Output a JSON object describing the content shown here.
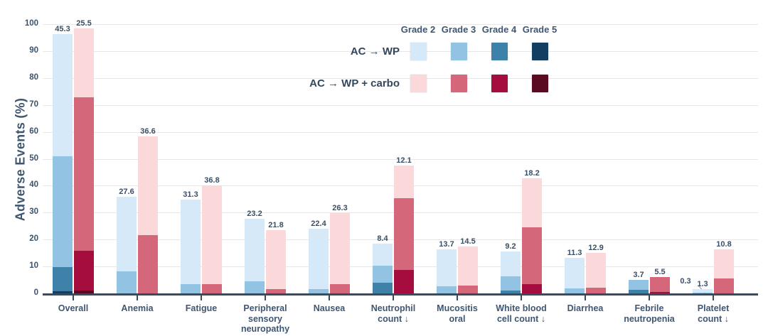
{
  "y_axis": {
    "title": "Adverse Events (%)",
    "ticks": [
      "0",
      "10",
      "20",
      "30",
      "40",
      "50",
      "60",
      "70",
      "80",
      "90",
      "100"
    ]
  },
  "legend": {
    "position": "top-right-inside-plot",
    "grade_headers": [
      "Grade 2",
      "Grade 3",
      "Grade 4",
      "Grade 5"
    ],
    "arms": [
      {
        "label": "AC → WP",
        "colors": {
          "Grade 2": "#d6e9f8",
          "Grade 3": "#93c3e2",
          "Grade 4": "#3e82a9",
          "Grade 5": "#123f61"
        }
      },
      {
        "label": "AC → WP + carbo",
        "colors": {
          "Grade 2": "#fbd9db",
          "Grade 3": "#d5677b",
          "Grade 4": "#a50d3e",
          "Grade 5": "#5a0b22"
        }
      }
    ]
  },
  "style": {
    "gridline_color": "#e7e7e7",
    "axis_color": "#3a4b5e",
    "label_color": "#3a4f66",
    "light_label_color": "#ffffff",
    "callout_line_color": "#8fa6b8"
  },
  "chart_data": {
    "type": "bar",
    "stacked": true,
    "grid": true,
    "ylabel": "Adverse Events (%)",
    "ylim": [
      0,
      100
    ],
    "ytick_step": 10,
    "grade_stack_order_bottom_up": [
      "Grade 5",
      "Grade 4",
      "Grade 3",
      "Grade 2"
    ],
    "series_names": [
      "AC → WP",
      "AC → WP + carbo"
    ],
    "categories": [
      {
        "label": "Overall",
        "lines": [
          "Overall"
        ],
        "arms": [
          {
            "segments": [
              {
                "grade": "Grade 5",
                "value": 0.8,
                "label_light": true
              },
              {
                "grade": "Grade 4",
                "value": 8.9
              },
              {
                "grade": "Grade 3",
                "value": 41.3
              },
              {
                "grade": "Grade 2",
                "value": 45.3
              }
            ]
          },
          {
            "segments": [
              {
                "grade": "Grade 5",
                "value": 1.1,
                "label_light": true
              },
              {
                "grade": "Grade 4",
                "value": 14.7
              },
              {
                "grade": "Grade 3",
                "value": 57.1
              },
              {
                "grade": "Grade 2",
                "value": 25.5
              }
            ]
          }
        ]
      },
      {
        "label": "Anemia",
        "lines": [
          "Anemia"
        ],
        "arms": [
          {
            "segments": [
              {
                "grade": "Grade 3",
                "value": 8.2
              },
              {
                "grade": "Grade 2",
                "value": 27.6
              }
            ]
          },
          {
            "segments": [
              {
                "grade": "Grade 3",
                "value": 21.6
              },
              {
                "grade": "Grade 2",
                "value": 36.6
              }
            ]
          }
        ]
      },
      {
        "label": "Fatigue",
        "lines": [
          "Fatigue"
        ],
        "arms": [
          {
            "segments": [
              {
                "grade": "Grade 3",
                "value": 3.4
              },
              {
                "grade": "Grade 2",
                "value": 31.3
              }
            ]
          },
          {
            "segments": [
              {
                "grade": "Grade 3",
                "value": 3.4
              },
              {
                "grade": "Grade 2",
                "value": 36.8
              }
            ]
          }
        ]
      },
      {
        "label": "Peripheral sensory neuropathy",
        "lines": [
          "Peripheral",
          "sensory",
          "neuropathy"
        ],
        "arms": [
          {
            "segments": [
              {
                "grade": "Grade 3",
                "value": 4.5
              },
              {
                "grade": "Grade 2",
                "value": 23.2
              }
            ]
          },
          {
            "segments": [
              {
                "grade": "Grade 3",
                "value": 1.6
              },
              {
                "grade": "Grade 2",
                "value": 21.8
              }
            ]
          }
        ]
      },
      {
        "label": "Nausea",
        "lines": [
          "Nausea"
        ],
        "arms": [
          {
            "segments": [
              {
                "grade": "Grade 3",
                "value": 1.6
              },
              {
                "grade": "Grade 2",
                "value": 22.4
              }
            ]
          },
          {
            "segments": [
              {
                "grade": "Grade 3",
                "value": 3.4
              },
              {
                "grade": "Grade 2",
                "value": 26.3
              }
            ]
          }
        ]
      },
      {
        "label": "Neutrophil count ↓",
        "lines": [
          "Neutrophil",
          "count ↓"
        ],
        "arms": [
          {
            "segments": [
              {
                "grade": "Grade 4",
                "value": 3.9
              },
              {
                "grade": "Grade 3",
                "value": 6.3
              },
              {
                "grade": "Grade 2",
                "value": 8.4
              }
            ]
          },
          {
            "segments": [
              {
                "grade": "Grade 4",
                "value": 8.7
              },
              {
                "grade": "Grade 3",
                "value": 26.6
              },
              {
                "grade": "Grade 2",
                "value": 12.1
              }
            ]
          }
        ]
      },
      {
        "label": "Mucositis oral",
        "lines": [
          "Mucositis",
          "oral"
        ],
        "arms": [
          {
            "segments": [
              {
                "grade": "Grade 3",
                "value": 2.6
              },
              {
                "grade": "Grade 2",
                "value": 13.7
              }
            ]
          },
          {
            "segments": [
              {
                "grade": "Grade 3",
                "value": 2.9
              },
              {
                "grade": "Grade 2",
                "value": 14.5
              }
            ]
          }
        ]
      },
      {
        "label": "White blood cell count ↓",
        "lines": [
          "White blood",
          "cell count ↓"
        ],
        "arms": [
          {
            "segments": [
              {
                "grade": "Grade 4",
                "value": 1.1
              },
              {
                "grade": "Grade 3",
                "value": 5.3
              },
              {
                "grade": "Grade 2",
                "value": 9.2
              }
            ]
          },
          {
            "segments": [
              {
                "grade": "Grade 4",
                "value": 3.4
              },
              {
                "grade": "Grade 3",
                "value": 21.1
              },
              {
                "grade": "Grade 2",
                "value": 18.2
              }
            ]
          }
        ]
      },
      {
        "label": "Diarrhea",
        "lines": [
          "Diarrhea"
        ],
        "arms": [
          {
            "segments": [
              {
                "grade": "Grade 3",
                "value": 1.8
              },
              {
                "grade": "Grade 2",
                "value": 11.3
              }
            ]
          },
          {
            "segments": [
              {
                "grade": "Grade 3",
                "value": 2.1
              },
              {
                "grade": "Grade 2",
                "value": 12.9
              }
            ]
          }
        ]
      },
      {
        "label": "Febrile neutropenia",
        "lines": [
          "Febrile",
          "neutropenia"
        ],
        "arms": [
          {
            "segments": [
              {
                "grade": "Grade 4",
                "value": 1.3
              },
              {
                "grade": "Grade 3",
                "value": 3.7
              }
            ]
          },
          {
            "segments": [
              {
                "grade": "Grade 4",
                "value": 0.5,
                "label_color": "#8f1436"
              },
              {
                "grade": "Grade 3",
                "value": 5.5
              }
            ]
          }
        ]
      },
      {
        "label": "Platelet count ↓",
        "lines": [
          "Platelet",
          "count ↓"
        ],
        "arms": [
          {
            "segments": [
              {
                "grade": "Grade 3",
                "value": 0.3,
                "callout": true
              },
              {
                "grade": "Grade 2",
                "value": 1.3
              }
            ]
          },
          {
            "segments": [
              {
                "grade": "Grade 3",
                "value": 5.5
              },
              {
                "grade": "Grade 2",
                "value": 10.8
              }
            ]
          }
        ]
      }
    ]
  }
}
